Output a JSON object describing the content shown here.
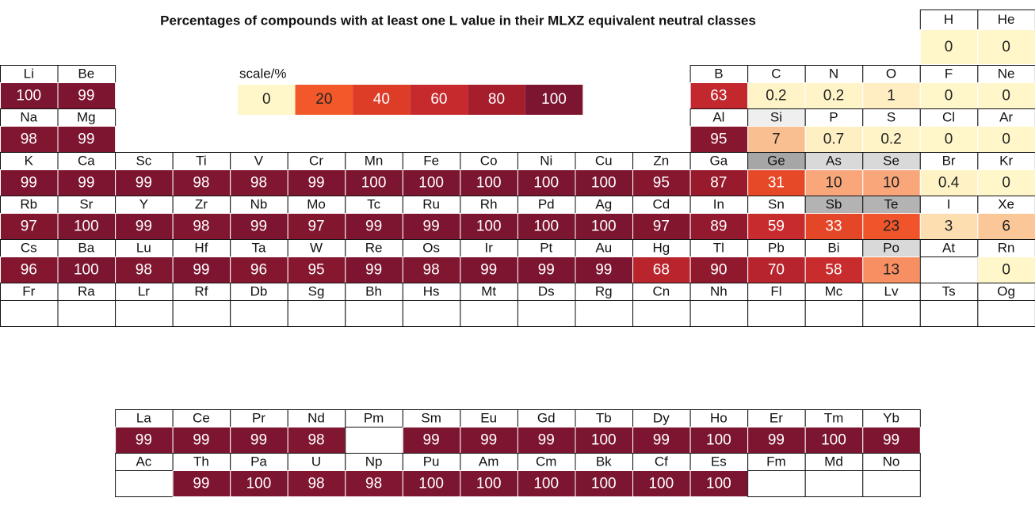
{
  "title": "Percentages of compounds with at least one L value in their MLXZ equivalent neutral classes",
  "scale": {
    "label": "scale/%",
    "values": [
      0,
      20,
      40,
      60,
      80,
      100
    ],
    "colors": [
      "#fff6c9",
      "#f2582a",
      "#dd3d27",
      "#c72a2d",
      "#a61d2c",
      "#7c1530"
    ]
  },
  "elements": [
    {
      "symbol": "H",
      "value": 0
    },
    {
      "symbol": "He",
      "value": 0
    },
    {
      "symbol": "Li",
      "value": 100
    },
    {
      "symbol": "Be",
      "value": 99
    },
    {
      "symbol": "B",
      "value": 63
    },
    {
      "symbol": "C",
      "value": 0.2
    },
    {
      "symbol": "N",
      "value": 0.2
    },
    {
      "symbol": "O",
      "value": 1
    },
    {
      "symbol": "F",
      "value": 0
    },
    {
      "symbol": "Ne",
      "value": 0
    },
    {
      "symbol": "Na",
      "value": 98
    },
    {
      "symbol": "Mg",
      "value": 99
    },
    {
      "symbol": "Al",
      "value": 95
    },
    {
      "symbol": "Si",
      "value": 7,
      "symbol_color": "#efefef"
    },
    {
      "symbol": "P",
      "value": 0.7
    },
    {
      "symbol": "S",
      "value": 0.2
    },
    {
      "symbol": "Cl",
      "value": 0
    },
    {
      "symbol": "Ar",
      "value": 0
    },
    {
      "symbol": "K",
      "value": 99
    },
    {
      "symbol": "Ca",
      "value": 99
    },
    {
      "symbol": "Sc",
      "value": 99
    },
    {
      "symbol": "Ti",
      "value": 98
    },
    {
      "symbol": "V",
      "value": 98
    },
    {
      "symbol": "Cr",
      "value": 99
    },
    {
      "symbol": "Mn",
      "value": 100
    },
    {
      "symbol": "Fe",
      "value": 100
    },
    {
      "symbol": "Co",
      "value": 100
    },
    {
      "symbol": "Ni",
      "value": 100
    },
    {
      "symbol": "Cu",
      "value": 100
    },
    {
      "symbol": "Zn",
      "value": 95
    },
    {
      "symbol": "Ga",
      "value": 87
    },
    {
      "symbol": "Ge",
      "value": 31,
      "symbol_color": "#a6a6a6"
    },
    {
      "symbol": "As",
      "value": 10,
      "symbol_color": "#d9d9d9"
    },
    {
      "symbol": "Se",
      "value": 10,
      "symbol_color": "#d9d9d9"
    },
    {
      "symbol": "Br",
      "value": 0.4
    },
    {
      "symbol": "Kr",
      "value": 0
    },
    {
      "symbol": "Rb",
      "value": 97
    },
    {
      "symbol": "Sr",
      "value": 100
    },
    {
      "symbol": "Y",
      "value": 99
    },
    {
      "symbol": "Zr",
      "value": 98
    },
    {
      "symbol": "Nb",
      "value": 99
    },
    {
      "symbol": "Mo",
      "value": 97
    },
    {
      "symbol": "Tc",
      "value": 99
    },
    {
      "symbol": "Ru",
      "value": 99
    },
    {
      "symbol": "Rh",
      "value": 100
    },
    {
      "symbol": "Pd",
      "value": 100
    },
    {
      "symbol": "Ag",
      "value": 100
    },
    {
      "symbol": "Cd",
      "value": 97
    },
    {
      "symbol": "In",
      "value": 89
    },
    {
      "symbol": "Sn",
      "value": 59
    },
    {
      "symbol": "Sb",
      "value": 33,
      "symbol_color": "#b3b3b3"
    },
    {
      "symbol": "Te",
      "value": 23,
      "symbol_color": "#b3b3b3"
    },
    {
      "symbol": "I",
      "value": 3
    },
    {
      "symbol": "Xe",
      "value": 6
    },
    {
      "symbol": "Cs",
      "value": 96
    },
    {
      "symbol": "Ba",
      "value": 100
    },
    {
      "symbol": "Lu",
      "value": 98
    },
    {
      "symbol": "Hf",
      "value": 99
    },
    {
      "symbol": "Ta",
      "value": 96
    },
    {
      "symbol": "W",
      "value": 95
    },
    {
      "symbol": "Re",
      "value": 99
    },
    {
      "symbol": "Os",
      "value": 98
    },
    {
      "symbol": "Ir",
      "value": 99
    },
    {
      "symbol": "Pt",
      "value": 99
    },
    {
      "symbol": "Au",
      "value": 99
    },
    {
      "symbol": "Hg",
      "value": 68
    },
    {
      "symbol": "Tl",
      "value": 90
    },
    {
      "symbol": "Pb",
      "value": 70
    },
    {
      "symbol": "Bi",
      "value": 58
    },
    {
      "symbol": "Po",
      "value": 13,
      "symbol_color": "#d9d9d9"
    },
    {
      "symbol": "At",
      "value": null
    },
    {
      "symbol": "Rn",
      "value": 0
    },
    {
      "symbol": "Fr",
      "value": null
    },
    {
      "symbol": "Ra",
      "value": null
    },
    {
      "symbol": "Lr",
      "value": null
    },
    {
      "symbol": "Rf",
      "value": null
    },
    {
      "symbol": "Db",
      "value": null
    },
    {
      "symbol": "Sg",
      "value": null
    },
    {
      "symbol": "Bh",
      "value": null
    },
    {
      "symbol": "Hs",
      "value": null
    },
    {
      "symbol": "Mt",
      "value": null
    },
    {
      "symbol": "Ds",
      "value": null
    },
    {
      "symbol": "Rg",
      "value": null
    },
    {
      "symbol": "Cn",
      "value": null
    },
    {
      "symbol": "Nh",
      "value": null
    },
    {
      "symbol": "Fl",
      "value": null
    },
    {
      "symbol": "Mc",
      "value": null
    },
    {
      "symbol": "Lv",
      "value": null
    },
    {
      "symbol": "Ts",
      "value": null
    },
    {
      "symbol": "Og",
      "value": null
    },
    {
      "symbol": "La",
      "value": 99
    },
    {
      "symbol": "Ce",
      "value": 99
    },
    {
      "symbol": "Pr",
      "value": 99
    },
    {
      "symbol": "Nd",
      "value": 98
    },
    {
      "symbol": "Pm",
      "value": null
    },
    {
      "symbol": "Sm",
      "value": 99
    },
    {
      "symbol": "Eu",
      "value": 99
    },
    {
      "symbol": "Gd",
      "value": 99
    },
    {
      "symbol": "Tb",
      "value": 100
    },
    {
      "symbol": "Dy",
      "value": 99
    },
    {
      "symbol": "Ho",
      "value": 100
    },
    {
      "symbol": "Er",
      "value": 99
    },
    {
      "symbol": "Tm",
      "value": 100
    },
    {
      "symbol": "Yb",
      "value": 99
    },
    {
      "symbol": "Ac",
      "value": null
    },
    {
      "symbol": "Th",
      "value": 99
    },
    {
      "symbol": "Pa",
      "value": 100
    },
    {
      "symbol": "U",
      "value": 98
    },
    {
      "symbol": "Np",
      "value": 98
    },
    {
      "symbol": "Pu",
      "value": 100
    },
    {
      "symbol": "Am",
      "value": 100
    },
    {
      "symbol": "Cm",
      "value": 100
    },
    {
      "symbol": "Bk",
      "value": 100
    },
    {
      "symbol": "Cf",
      "value": 100
    },
    {
      "symbol": "Es",
      "value": 100
    },
    {
      "symbol": "Fm",
      "value": null
    },
    {
      "symbol": "Md",
      "value": null
    },
    {
      "symbol": "No",
      "value": null
    }
  ]
}
